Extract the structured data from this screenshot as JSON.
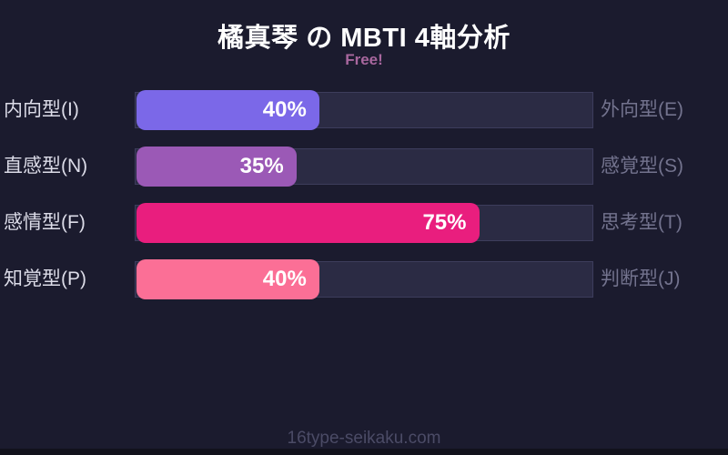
{
  "page": {
    "title": "橘真琴 の MBTI 4軸分析",
    "subtitle": "Free!",
    "footer": "16type-seikaku.com",
    "colors": {
      "background": "#1b1b2e",
      "track": "#2b2b44",
      "track_border": "#3d3d5c",
      "title_text": "#ffffff",
      "subtitle_text": "#a8679e",
      "left_label_text": "#dcdce8",
      "right_label_text": "#73738e",
      "percent_text": "#ffffff",
      "footer_text": "#4b4b66",
      "bottom_strip": "#12121c"
    }
  },
  "chart_data": {
    "type": "bar",
    "orientation": "horizontal",
    "title": "橘真琴 の MBTI 4軸分析",
    "subtitle": "Free!",
    "unit": "%",
    "xlim": [
      0,
      100
    ],
    "grid": false,
    "legend": false,
    "rows": [
      {
        "left_label": "内向型(I)",
        "right_label": "外向型(E)",
        "value": 40,
        "value_label": "40%",
        "color": "#7b68e8"
      },
      {
        "left_label": "直感型(N)",
        "right_label": "感覚型(S)",
        "value": 35,
        "value_label": "35%",
        "color": "#9b59b6"
      },
      {
        "left_label": "感情型(F)",
        "right_label": "思考型(T)",
        "value": 75,
        "value_label": "75%",
        "color": "#e91e7e"
      },
      {
        "left_label": "知覚型(P)",
        "right_label": "判断型(J)",
        "value": 40,
        "value_label": "40%",
        "color": "#fb6f96"
      }
    ]
  }
}
